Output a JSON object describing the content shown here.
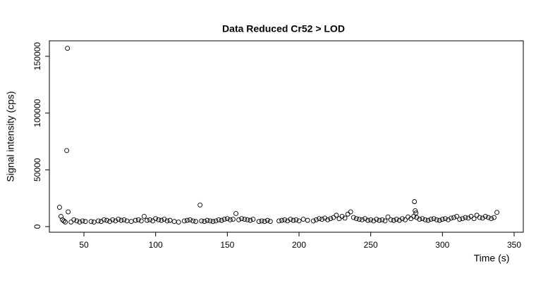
{
  "chart_data": {
    "type": "scatter",
    "title": "Data Reduced Cr52 > LOD",
    "x_label": "Time (s)",
    "y_label": "Signal intensity (cps)",
    "x": [
      33,
      34,
      35,
      36,
      37,
      38,
      38.5,
      39,
      41,
      43,
      45,
      47,
      49,
      51,
      55,
      57,
      60,
      62,
      64,
      66,
      68,
      70,
      72,
      74,
      76,
      78,
      80,
      83,
      86,
      88,
      90,
      92,
      94,
      96,
      98,
      100,
      102,
      104,
      106,
      108,
      110,
      113,
      116,
      120,
      122,
      124,
      126,
      128,
      131,
      132,
      134,
      136,
      138,
      140,
      142,
      144,
      146,
      148,
      150,
      152,
      154,
      156,
      158,
      160,
      162,
      164,
      166,
      168,
      172,
      174,
      176,
      178,
      180,
      186,
      188,
      190,
      192,
      194,
      196,
      198,
      200,
      203,
      206,
      210,
      212,
      214,
      216,
      218,
      220,
      222,
      224,
      226,
      228,
      230,
      232,
      234,
      236,
      238,
      240,
      242,
      244,
      246,
      248,
      250,
      252,
      254,
      256,
      258,
      260,
      262,
      264,
      266,
      268,
      270,
      272,
      274,
      276,
      278,
      280,
      280.5,
      281,
      281.5,
      282,
      284,
      286,
      288,
      290,
      292,
      294,
      296,
      298,
      300,
      302,
      304,
      306,
      308,
      310,
      312,
      314,
      316,
      318,
      320,
      322,
      324,
      326,
      328,
      330,
      332,
      334,
      336,
      338
    ],
    "series": [
      {
        "color": "#000000",
        "values": [
          17000,
          9000,
          6000,
          5000,
          4000,
          67000,
          157000,
          13000,
          4000,
          6000,
          5000,
          4000,
          5000,
          4500,
          4500,
          4000,
          5000,
          4500,
          6000,
          5500,
          4500,
          6000,
          5000,
          6500,
          5500,
          6000,
          5000,
          4500,
          5500,
          6000,
          5000,
          9000,
          5500,
          6000,
          5000,
          7000,
          6000,
          5500,
          6500,
          5000,
          5500,
          4500,
          4000,
          5000,
          5500,
          6000,
          5000,
          4500,
          19000,
          5000,
          4500,
          5500,
          5000,
          4500,
          5000,
          6000,
          5500,
          6500,
          7000,
          6000,
          6500,
          11500,
          6000,
          7000,
          6500,
          6000,
          5500,
          6500,
          4500,
          5000,
          4500,
          5500,
          4500,
          5000,
          5500,
          6000,
          5000,
          6500,
          5500,
          6000,
          5000,
          6500,
          5500,
          5000,
          6000,
          7000,
          6500,
          7500,
          6000,
          7000,
          8000,
          10000,
          7000,
          9000,
          7500,
          11000,
          13000,
          8000,
          7000,
          6500,
          6000,
          7000,
          5500,
          6000,
          5000,
          6500,
          5500,
          6000,
          5000,
          8500,
          6000,
          5500,
          6500,
          5500,
          7000,
          6000,
          8500,
          7000,
          9000,
          22000,
          14000,
          12000,
          8000,
          6500,
          7000,
          6000,
          5500,
          6500,
          7000,
          6000,
          5500,
          6500,
          7000,
          6000,
          7500,
          8000,
          9000,
          6500,
          7000,
          8000,
          7500,
          9000,
          7000,
          10000,
          8000,
          7500,
          9000,
          8000,
          7000,
          8000,
          12500
        ]
      }
    ],
    "xlim": [
      25.9,
      356.4
    ],
    "xticks": [
      50,
      100,
      150,
      200,
      250,
      300,
      350
    ],
    "ylim": [
      -4960,
      163650
    ],
    "yticks": [
      0,
      50000,
      100000,
      150000
    ]
  }
}
